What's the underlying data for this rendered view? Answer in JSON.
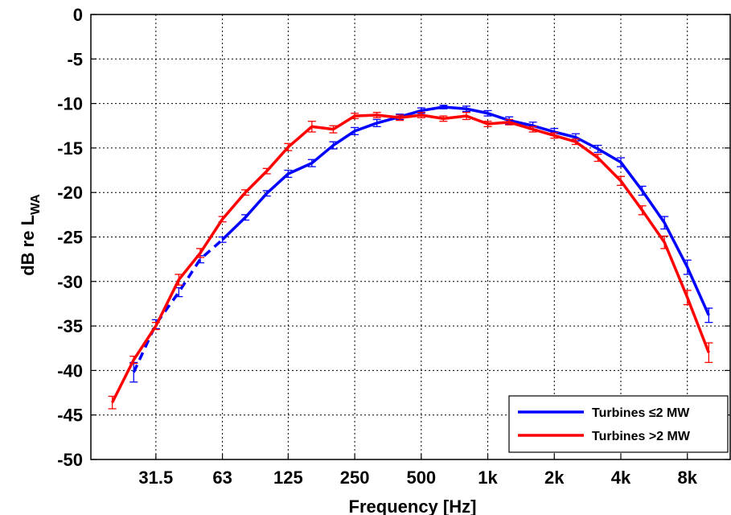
{
  "chart_data": {
    "type": "line",
    "xlabel": "Frequency [Hz]",
    "ylabel": "dB re L",
    "ylabel_subscript": "WA",
    "ylim": [
      -50,
      0
    ],
    "yticks": [
      0,
      -5,
      -10,
      -15,
      -20,
      -25,
      -30,
      -35,
      -40,
      -45,
      -50
    ],
    "xscale": "log",
    "xlim": [
      16,
      12500
    ],
    "xticks": [
      {
        "value": 31.5,
        "label": "31.5"
      },
      {
        "value": 63,
        "label": "63"
      },
      {
        "value": 125,
        "label": "125"
      },
      {
        "value": 250,
        "label": "250"
      },
      {
        "value": 500,
        "label": "500"
      },
      {
        "value": 1000,
        "label": "1k"
      },
      {
        "value": 2000,
        "label": "2k"
      },
      {
        "value": 4000,
        "label": "4k"
      },
      {
        "value": 8000,
        "label": "8k"
      }
    ],
    "grid": true,
    "legend_position": "bottom-right",
    "series": [
      {
        "name": "Turbines ≤2 MW",
        "color": "#0000ff",
        "dashed_until_x": 63,
        "x": [
          25,
          31.5,
          40,
          50,
          63,
          80,
          100,
          125,
          160,
          200,
          250,
          315,
          400,
          500,
          630,
          800,
          1000,
          1250,
          1600,
          2000,
          2500,
          3150,
          4000,
          5000,
          6300,
          8000,
          10000
        ],
        "y": [
          -40.2,
          -34.8,
          -31.2,
          -27.5,
          -25.3,
          -22.8,
          -20.1,
          -17.9,
          -16.7,
          -14.7,
          -13.1,
          -12.2,
          -11.5,
          -10.8,
          -10.4,
          -10.6,
          -11.1,
          -11.9,
          -12.5,
          -13.2,
          -13.8,
          -15.1,
          -16.6,
          -19.8,
          -23.4,
          -28.4,
          -33.8
        ],
        "err": [
          1.1,
          0.5,
          0.5,
          0.4,
          0.3,
          0.3,
          0.3,
          0.4,
          0.4,
          0.4,
          0.4,
          0.4,
          0.3,
          0.3,
          0.2,
          0.3,
          0.3,
          0.4,
          0.4,
          0.4,
          0.4,
          0.4,
          0.5,
          0.5,
          0.7,
          0.8,
          0.8
        ]
      },
      {
        "name": "Turbines >2 MW",
        "color": "#ff0000",
        "x": [
          20,
          25,
          31.5,
          40,
          50,
          63,
          80,
          100,
          125,
          160,
          200,
          250,
          315,
          400,
          500,
          630,
          800,
          1000,
          1250,
          1600,
          2000,
          2500,
          3150,
          4000,
          5000,
          6300,
          8000,
          10000
        ],
        "y": [
          -43.6,
          -38.8,
          -35.0,
          -29.8,
          -26.8,
          -23.0,
          -20.0,
          -17.6,
          -14.9,
          -12.6,
          -12.9,
          -11.4,
          -11.3,
          -11.6,
          -11.3,
          -11.7,
          -11.4,
          -12.3,
          -12.1,
          -12.9,
          -13.6,
          -14.3,
          -16.1,
          -18.7,
          -22.0,
          -25.6,
          -31.8,
          -38.0
        ],
        "err": [
          0.7,
          0.4,
          0.4,
          0.6,
          0.5,
          0.3,
          0.3,
          0.3,
          0.4,
          0.6,
          0.4,
          0.3,
          0.3,
          0.3,
          0.3,
          0.3,
          0.4,
          0.3,
          0.3,
          0.3,
          0.3,
          0.3,
          0.4,
          0.5,
          0.5,
          0.7,
          0.8,
          1.1
        ]
      }
    ]
  }
}
